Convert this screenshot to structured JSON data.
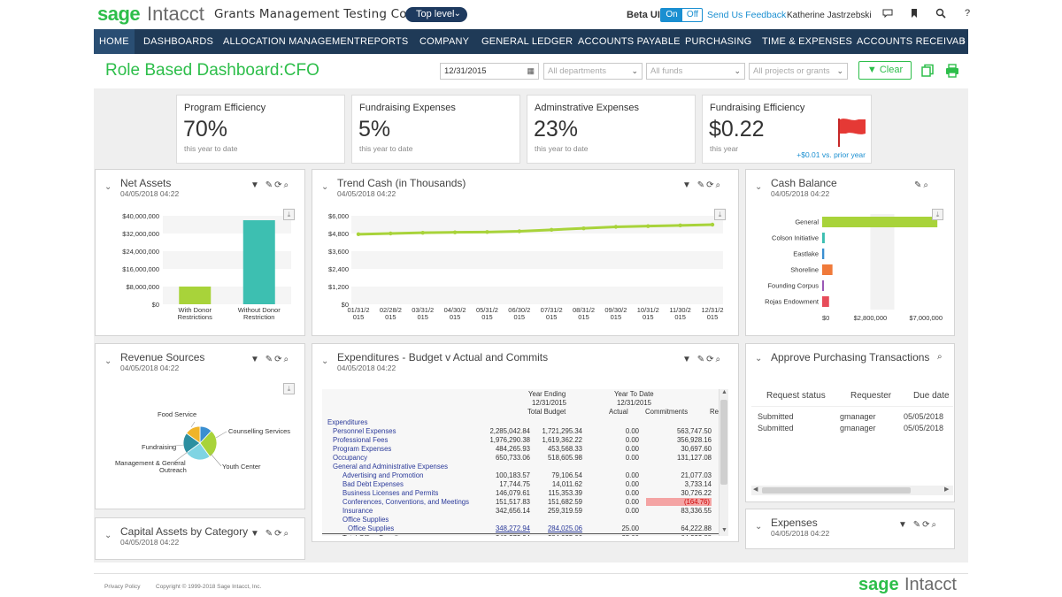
{
  "brand": {
    "sage": "sage",
    "intacct": "Intacct",
    "green": "#2dbe4a",
    "navy": "#1f3a57"
  },
  "header": {
    "company": "Grants Management Testing Comp…",
    "level": "Top level",
    "beta_label": "Beta UI",
    "toggle_on": "On",
    "toggle_off": "Off",
    "feedback": "Send Us Feedback",
    "user": "Katherine Jastrzebski",
    "icons": [
      "chat-icon",
      "bookmark-icon",
      "search-icon",
      "help-icon"
    ]
  },
  "nav": {
    "items": [
      "HOME",
      "DASHBOARDS",
      "ALLOCATION MANAGEMENT",
      "REPORTS",
      "COMPANY",
      "GENERAL LEDGER",
      "ACCOUNTS PAYABLE",
      "PURCHASING",
      "TIME & EXPENSES",
      "ACCOUNTS RECEIVAB"
    ],
    "more": "›"
  },
  "page": {
    "title": "Role Based Dashboard:CFO",
    "date": "12/31/2015",
    "departments_placeholder": "All departments",
    "funds_placeholder": "All funds",
    "projects_placeholder": "All projects or grants",
    "clear_label": "Clear"
  },
  "kpis": [
    {
      "title": "Program Efficiency",
      "value": "70%",
      "sub": "this year to date"
    },
    {
      "title": "Fundraising Expenses",
      "value": "5%",
      "sub": "this year to date"
    },
    {
      "title": "Adminstrative Expenses",
      "value": "23%",
      "sub": "this year to date"
    },
    {
      "title": "Fundraising Efficiency",
      "value": "$0.22",
      "sub": "this year",
      "delta": "+$0.01 vs. prior year"
    }
  ],
  "panels": {
    "net_assets": {
      "title": "Net Assets",
      "time": "04/05/2018 04:22"
    },
    "trend_cash": {
      "title": "Trend Cash (in Thousands)",
      "time": "04/05/2018 04:22"
    },
    "cash_balance": {
      "title": "Cash Balance",
      "time": "04/05/2018 04:22"
    },
    "revenue_sources": {
      "title": "Revenue Sources",
      "time": "04/05/2018 04:22"
    },
    "expenditures": {
      "title": "Expenditures - Budget v Actual and Commits",
      "time": "04/05/2018 04:22"
    },
    "approve": {
      "title": "Approve Purchasing Transactions"
    },
    "capital_assets": {
      "title": "Capital Assets by Category",
      "time": "04/05/2018 04:22"
    },
    "expenses": {
      "title": "Expenses",
      "time": "04/05/2018 04:22"
    }
  },
  "chart_data": [
    {
      "type": "bar",
      "title": "Net Assets",
      "categories": [
        "With Donor Restrictions",
        "Without Donor Restriction"
      ],
      "category_lines": [
        [
          "With Donor",
          "Restrictions"
        ],
        [
          "Without Donor",
          "Restriction"
        ]
      ],
      "values": [
        8000000,
        38000000
      ],
      "colors": [
        "#a8d33a",
        "#3dbfb1"
      ],
      "ylim": [
        0,
        40000000
      ],
      "yticks": [
        "$40,000,000",
        "$32,000,000",
        "$24,000,000",
        "$16,000,000",
        "$8,000,000",
        "$0"
      ]
    },
    {
      "type": "line",
      "title": "Trend Cash (in Thousands)",
      "x": [
        "01/31/2015",
        "02/28/2015",
        "03/31/2015",
        "04/30/2015",
        "05/31/2015",
        "06/30/2015",
        "07/31/2015",
        "08/31/2015",
        "09/30/2015",
        "10/31/2015",
        "11/30/2015",
        "12/31/2015"
      ],
      "xlabels_top": [
        "01/31/2",
        "02/28/2",
        "03/31/2",
        "04/30/2",
        "05/31/2",
        "06/30/2",
        "07/31/2",
        "08/31/2",
        "09/30/2",
        "10/31/2",
        "11/30/2",
        "12/31/2"
      ],
      "xlabels_bottom": [
        "015",
        "015",
        "015",
        "015",
        "015",
        "015",
        "015",
        "015",
        "015",
        "015",
        "015",
        "015"
      ],
      "values": [
        4750,
        4800,
        4850,
        4880,
        4900,
        4950,
        5050,
        5150,
        5250,
        5300,
        5350,
        5400
      ],
      "color": "#a8d33a",
      "ylim": [
        0,
        6000
      ],
      "yticks": [
        "$6,000",
        "$4,800",
        "$3,600",
        "$2,400",
        "$1,200",
        "$0"
      ]
    },
    {
      "type": "bar",
      "orientation": "horizontal",
      "title": "Cash Balance",
      "categories": [
        "General",
        "Colson Initiative",
        "Eastlake",
        "Shoreline",
        "Founding Corpus",
        "Rojas Endowment"
      ],
      "values": [
        6700000,
        150000,
        120000,
        600000,
        30000,
        400000
      ],
      "colors": [
        "#a8d33a",
        "#3dbfb1",
        "#3a8fd1",
        "#f07a3a",
        "#9b59b6",
        "#e74c5a"
      ],
      "xlim": [
        0,
        7000000
      ],
      "xticks": [
        "$0",
        "$2,800,000",
        "$7,000,000"
      ]
    },
    {
      "type": "pie",
      "title": "Revenue Sources",
      "labels": [
        "Food Service",
        "Counseling Services",
        "Youth Center",
        "Management & General Outreach",
        "Fundraising"
      ],
      "values": [
        12,
        28,
        25,
        20,
        15
      ],
      "colors": [
        "#3a8fd1",
        "#a8d33a",
        "#7fd4e3",
        "#2d8fa0",
        "#f0b429"
      ]
    }
  ],
  "pie_labels": {
    "food": "Food Service",
    "counsel": "Counselling Services",
    "youth": "Youth Center",
    "mgmt1": "Management & General",
    "mgmt2": "Outreach",
    "fund": "Fundraising"
  },
  "expenditures_table": {
    "headers": {
      "year_ending": "Year Ending",
      "ye_date": "12/31/2015",
      "total_budget": "Total Budget",
      "ytd": "Year To Date",
      "ytd_date": "12/31/2015",
      "actual": "Actual",
      "commitments": "Commitments",
      "r": "Re"
    },
    "rows": [
      {
        "label": "Expenditures",
        "indent": 0,
        "budget": "",
        "ytd": "",
        "actual": "",
        "commit": ""
      },
      {
        "label": "Personnel Expenses",
        "indent": 1,
        "budget": "2,285,042.84",
        "ytd": "1,721,295.34",
        "actual": "0.00",
        "commit": "563,747.50"
      },
      {
        "label": "Professional Fees",
        "indent": 1,
        "budget": "1,976,290.38",
        "ytd": "1,619,362.22",
        "actual": "0.00",
        "commit": "356,928.16"
      },
      {
        "label": "Program Expenses",
        "indent": 1,
        "budget": "484,265.93",
        "ytd": "453,568.33",
        "actual": "0.00",
        "commit": "30,697.60"
      },
      {
        "label": "Occupancy",
        "indent": 1,
        "budget": "650,733.06",
        "ytd": "518,605.98",
        "actual": "0.00",
        "commit": "131,127.08"
      },
      {
        "label": "General and Administrative Expenses",
        "indent": 1,
        "budget": "",
        "ytd": "",
        "actual": "",
        "commit": ""
      },
      {
        "label": "Advertising and Promotion",
        "indent": 2,
        "budget": "100,183.57",
        "ytd": "79,106.54",
        "actual": "0.00",
        "commit": "21,077.03"
      },
      {
        "label": "Bad Debt Expenses",
        "indent": 2,
        "budget": "17,744.75",
        "ytd": "14,011.62",
        "actual": "0.00",
        "commit": "3,733.14"
      },
      {
        "label": "Business Licenses and Permits",
        "indent": 2,
        "budget": "146,079.61",
        "ytd": "115,353.39",
        "actual": "0.00",
        "commit": "30,726.22"
      },
      {
        "label": "Conferences, Conventions, and Meetings",
        "indent": 2,
        "budget": "151,517.83",
        "ytd": "151,682.59",
        "actual": "0.00",
        "commit": "(164.76)",
        "negative": true
      },
      {
        "label": "Insurance",
        "indent": 2,
        "budget": "342,656.14",
        "ytd": "259,319.59",
        "actual": "0.00",
        "commit": "83,336.55"
      },
      {
        "label": "Office Supplies",
        "indent": 2,
        "budget": "",
        "ytd": "",
        "actual": "",
        "commit": ""
      },
      {
        "label": "Office Supplies",
        "indent": 3,
        "budget": "348,272.94",
        "ytd": "284,025.06",
        "actual": "25.00",
        "commit": "64,222.88"
      },
      {
        "label": "Total Office Supplies",
        "indent": 2,
        "budget": "348,272.94",
        "ytd": "284,025.06",
        "actual": "25.00",
        "commit": "64,222.88",
        "total": true
      }
    ]
  },
  "approve_table": {
    "headers": [
      "Request status",
      "Requester",
      "Due date"
    ],
    "rows": [
      [
        "Submitted",
        "gmanager",
        "05/05/2018"
      ],
      [
        "Submitted",
        "gmanager",
        "05/05/2018"
      ]
    ]
  },
  "footer": {
    "privacy": "Privacy Policy",
    "copyright": "Copyright © 1999-2018 Sage Intacct, Inc."
  }
}
